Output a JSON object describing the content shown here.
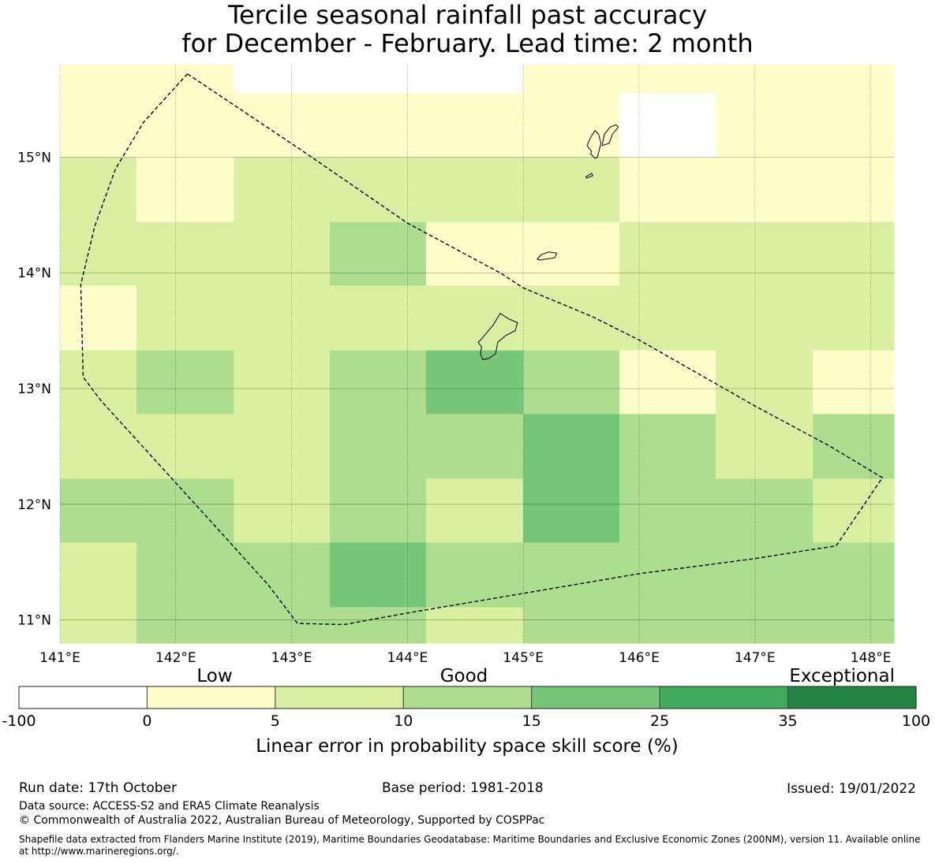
{
  "chart_data": {
    "type": "heatmap",
    "title_line1": "Tercile seasonal rainfall past accuracy",
    "title_line2": "for December - February. Lead time: 2 month",
    "x_axis": {
      "unit": "degrees east longitude",
      "range": [
        141.0,
        148.2
      ],
      "ticks": [
        141,
        142,
        143,
        144,
        145,
        146,
        147,
        148
      ],
      "tick_labels": [
        "141°E",
        "142°E",
        "143°E",
        "144°E",
        "145°E",
        "146°E",
        "147°E",
        "148°E"
      ]
    },
    "y_axis": {
      "unit": "degrees north latitude",
      "range": [
        10.8,
        15.8
      ],
      "ticks": [
        11,
        12,
        13,
        14,
        15
      ],
      "tick_labels": [
        "11°N",
        "12°N",
        "13°N",
        "14°N",
        "15°N"
      ]
    },
    "grid_lon_edges": [
      141.0,
      141.66,
      142.5,
      143.33,
      144.16,
      145.0,
      145.83,
      146.66,
      147.5,
      148.2
    ],
    "grid_lat_edges": [
      15.8,
      15.55,
      15.0,
      14.44,
      13.89,
      13.33,
      12.78,
      12.22,
      11.67,
      11.11,
      10.8
    ],
    "cell_classes_rows_north_to_south": [
      [
        1,
        1,
        0,
        0,
        0,
        1,
        1,
        1,
        1
      ],
      [
        1,
        1,
        1,
        1,
        1,
        1,
        0,
        1,
        1
      ],
      [
        2,
        1,
        2,
        2,
        2,
        2,
        1,
        1,
        1
      ],
      [
        2,
        2,
        2,
        3,
        1,
        1,
        2,
        2,
        2
      ],
      [
        1,
        2,
        2,
        2,
        2,
        2,
        2,
        2,
        2
      ],
      [
        2,
        3,
        2,
        3,
        4,
        3,
        1,
        2,
        1
      ],
      [
        2,
        2,
        2,
        3,
        3,
        4,
        3,
        2,
        3
      ],
      [
        3,
        3,
        2,
        3,
        2,
        4,
        3,
        3,
        2
      ],
      [
        2,
        3,
        3,
        4,
        3,
        3,
        3,
        3,
        3
      ],
      [
        2,
        3,
        3,
        3,
        2,
        3,
        3,
        3,
        3
      ]
    ],
    "boundary_lonlat": [
      [
        142.1,
        15.72
      ],
      [
        141.72,
        15.3
      ],
      [
        141.48,
        14.9
      ],
      [
        141.3,
        14.4
      ],
      [
        141.18,
        13.9
      ],
      [
        141.2,
        13.1
      ],
      [
        141.35,
        12.9
      ],
      [
        141.85,
        12.35
      ],
      [
        142.35,
        11.8
      ],
      [
        142.8,
        11.3
      ],
      [
        143.05,
        10.97
      ],
      [
        143.45,
        10.96
      ],
      [
        144.0,
        11.06
      ],
      [
        145.0,
        11.23
      ],
      [
        146.0,
        11.4
      ],
      [
        147.0,
        11.53
      ],
      [
        147.5,
        11.61
      ],
      [
        147.7,
        11.64
      ],
      [
        148.1,
        12.23
      ],
      [
        147.65,
        12.5
      ],
      [
        147.0,
        12.85
      ],
      [
        146.0,
        13.42
      ],
      [
        145.6,
        13.62
      ],
      [
        145.0,
        13.87
      ],
      [
        144.8,
        14.0
      ],
      [
        144.0,
        14.43
      ],
      [
        143.1,
        15.05
      ],
      [
        142.1,
        15.72
      ]
    ],
    "islands_lonlat": [
      [
        [
          144.64,
          13.43
        ],
        [
          144.74,
          13.55
        ],
        [
          144.8,
          13.65
        ],
        [
          144.88,
          13.6
        ],
        [
          144.95,
          13.57
        ],
        [
          144.93,
          13.5
        ],
        [
          144.85,
          13.46
        ],
        [
          144.78,
          13.4
        ],
        [
          144.76,
          13.3
        ],
        [
          144.7,
          13.26
        ],
        [
          144.65,
          13.25
        ],
        [
          144.63,
          13.3
        ],
        [
          144.64,
          13.36
        ],
        [
          144.61,
          13.4
        ],
        [
          144.64,
          13.43
        ]
      ],
      [
        [
          145.12,
          14.12
        ],
        [
          145.16,
          14.16
        ],
        [
          145.22,
          14.18
        ],
        [
          145.29,
          14.17
        ],
        [
          145.27,
          14.13
        ],
        [
          145.2,
          14.12
        ],
        [
          145.14,
          14.11
        ],
        [
          145.12,
          14.12
        ]
      ],
      [
        [
          145.59,
          15.05
        ],
        [
          145.55,
          15.1
        ],
        [
          145.58,
          15.17
        ],
        [
          145.62,
          15.23
        ],
        [
          145.65,
          15.2
        ],
        [
          145.67,
          15.12
        ],
        [
          145.64,
          15.0
        ],
        [
          145.62,
          14.99
        ],
        [
          145.58,
          15.03
        ],
        [
          145.59,
          15.05
        ]
      ],
      [
        [
          145.68,
          15.1
        ],
        [
          145.7,
          15.2
        ],
        [
          145.75,
          15.26
        ],
        [
          145.8,
          15.28
        ],
        [
          145.82,
          15.26
        ],
        [
          145.77,
          15.2
        ],
        [
          145.74,
          15.12
        ],
        [
          145.68,
          15.1
        ]
      ],
      [
        [
          145.54,
          14.83
        ],
        [
          145.59,
          14.86
        ],
        [
          145.6,
          14.84
        ],
        [
          145.55,
          14.82
        ],
        [
          145.54,
          14.83
        ]
      ]
    ],
    "colorbar": {
      "labels": [
        "Low",
        "Good",
        "Exceptional"
      ],
      "boundaries": [
        "-100",
        "0",
        "5",
        "10",
        "15",
        "25",
        "35",
        "100"
      ],
      "class_colors": [
        "#ffffff",
        "#ffffcc",
        "#d9f0a3",
        "#addd8e",
        "#78c679",
        "#41ab5d",
        "#238443"
      ],
      "axis_label": "Linear error in probability space skill score (%)"
    },
    "grid": true
  },
  "footer": {
    "run_date": "Run date: 17th October",
    "base_period": "Base period: 1981-2018",
    "issued": "Issued: 19/01/2022",
    "data_source": "Data source: ACCESS-S2 and ERA5 Climate Reanalysis",
    "copyright": "© Commonwealth of Australia 2022, Australian Bureau of Meteorology, Supported by COSPPac",
    "shapefile": "Shapefile data extracted from Flanders Marine Institute (2019), Maritime Boundaries Geodatabase: Maritime Boundaries and Exclusive Economic Zones (200NM), version 11. Available online at http://www.marineregions.org/."
  }
}
